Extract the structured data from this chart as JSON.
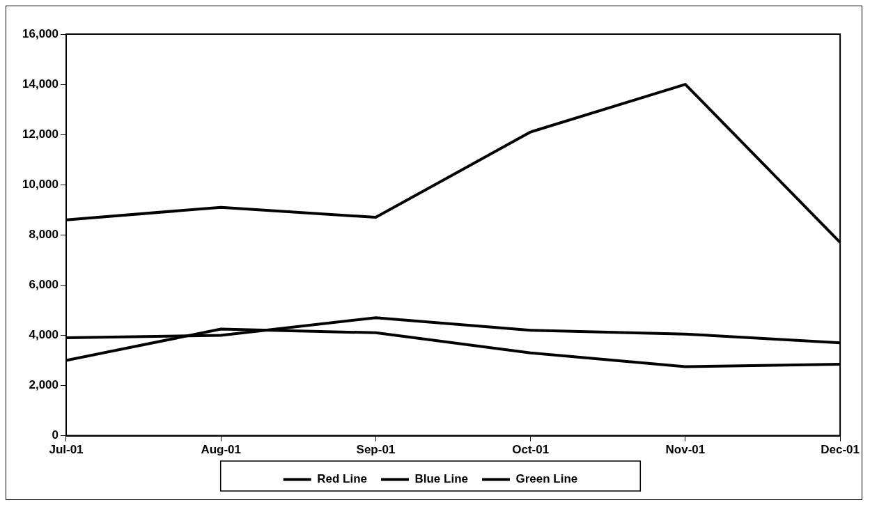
{
  "chart_data": {
    "type": "line",
    "categories": [
      "Jul-01",
      "Aug-01",
      "Sep-01",
      "Oct-01",
      "Nov-01",
      "Dec-01"
    ],
    "series": [
      {
        "name": "Red Line",
        "color": "#000000",
        "values": [
          8600,
          9100,
          8700,
          12100,
          14000,
          7700
        ]
      },
      {
        "name": "Blue Line",
        "color": "#000000",
        "values": [
          3900,
          4000,
          4700,
          4200,
          4050,
          3700
        ]
      },
      {
        "name": "Green Line",
        "color": "#000000",
        "values": [
          3000,
          4250,
          4100,
          3300,
          2750,
          2850
        ]
      }
    ],
    "ylim": [
      0,
      16000
    ],
    "yticks": [
      0,
      {
        "value": 2000,
        "label": "2,000"
      },
      {
        "value": 4000,
        "label": "4,000"
      },
      {
        "value": 6000,
        "label": "6,000"
      },
      {
        "value": 8000,
        "label": "8,000"
      },
      {
        "value": 10000,
        "label": "10,000"
      },
      {
        "value": 12000,
        "label": "12,000"
      },
      {
        "value": 14000,
        "label": "14,000"
      },
      {
        "value": 16000,
        "label": "16,000"
      }
    ],
    "grid": false,
    "legend": "bottom",
    "marker": "none",
    "line_style": "solid"
  }
}
